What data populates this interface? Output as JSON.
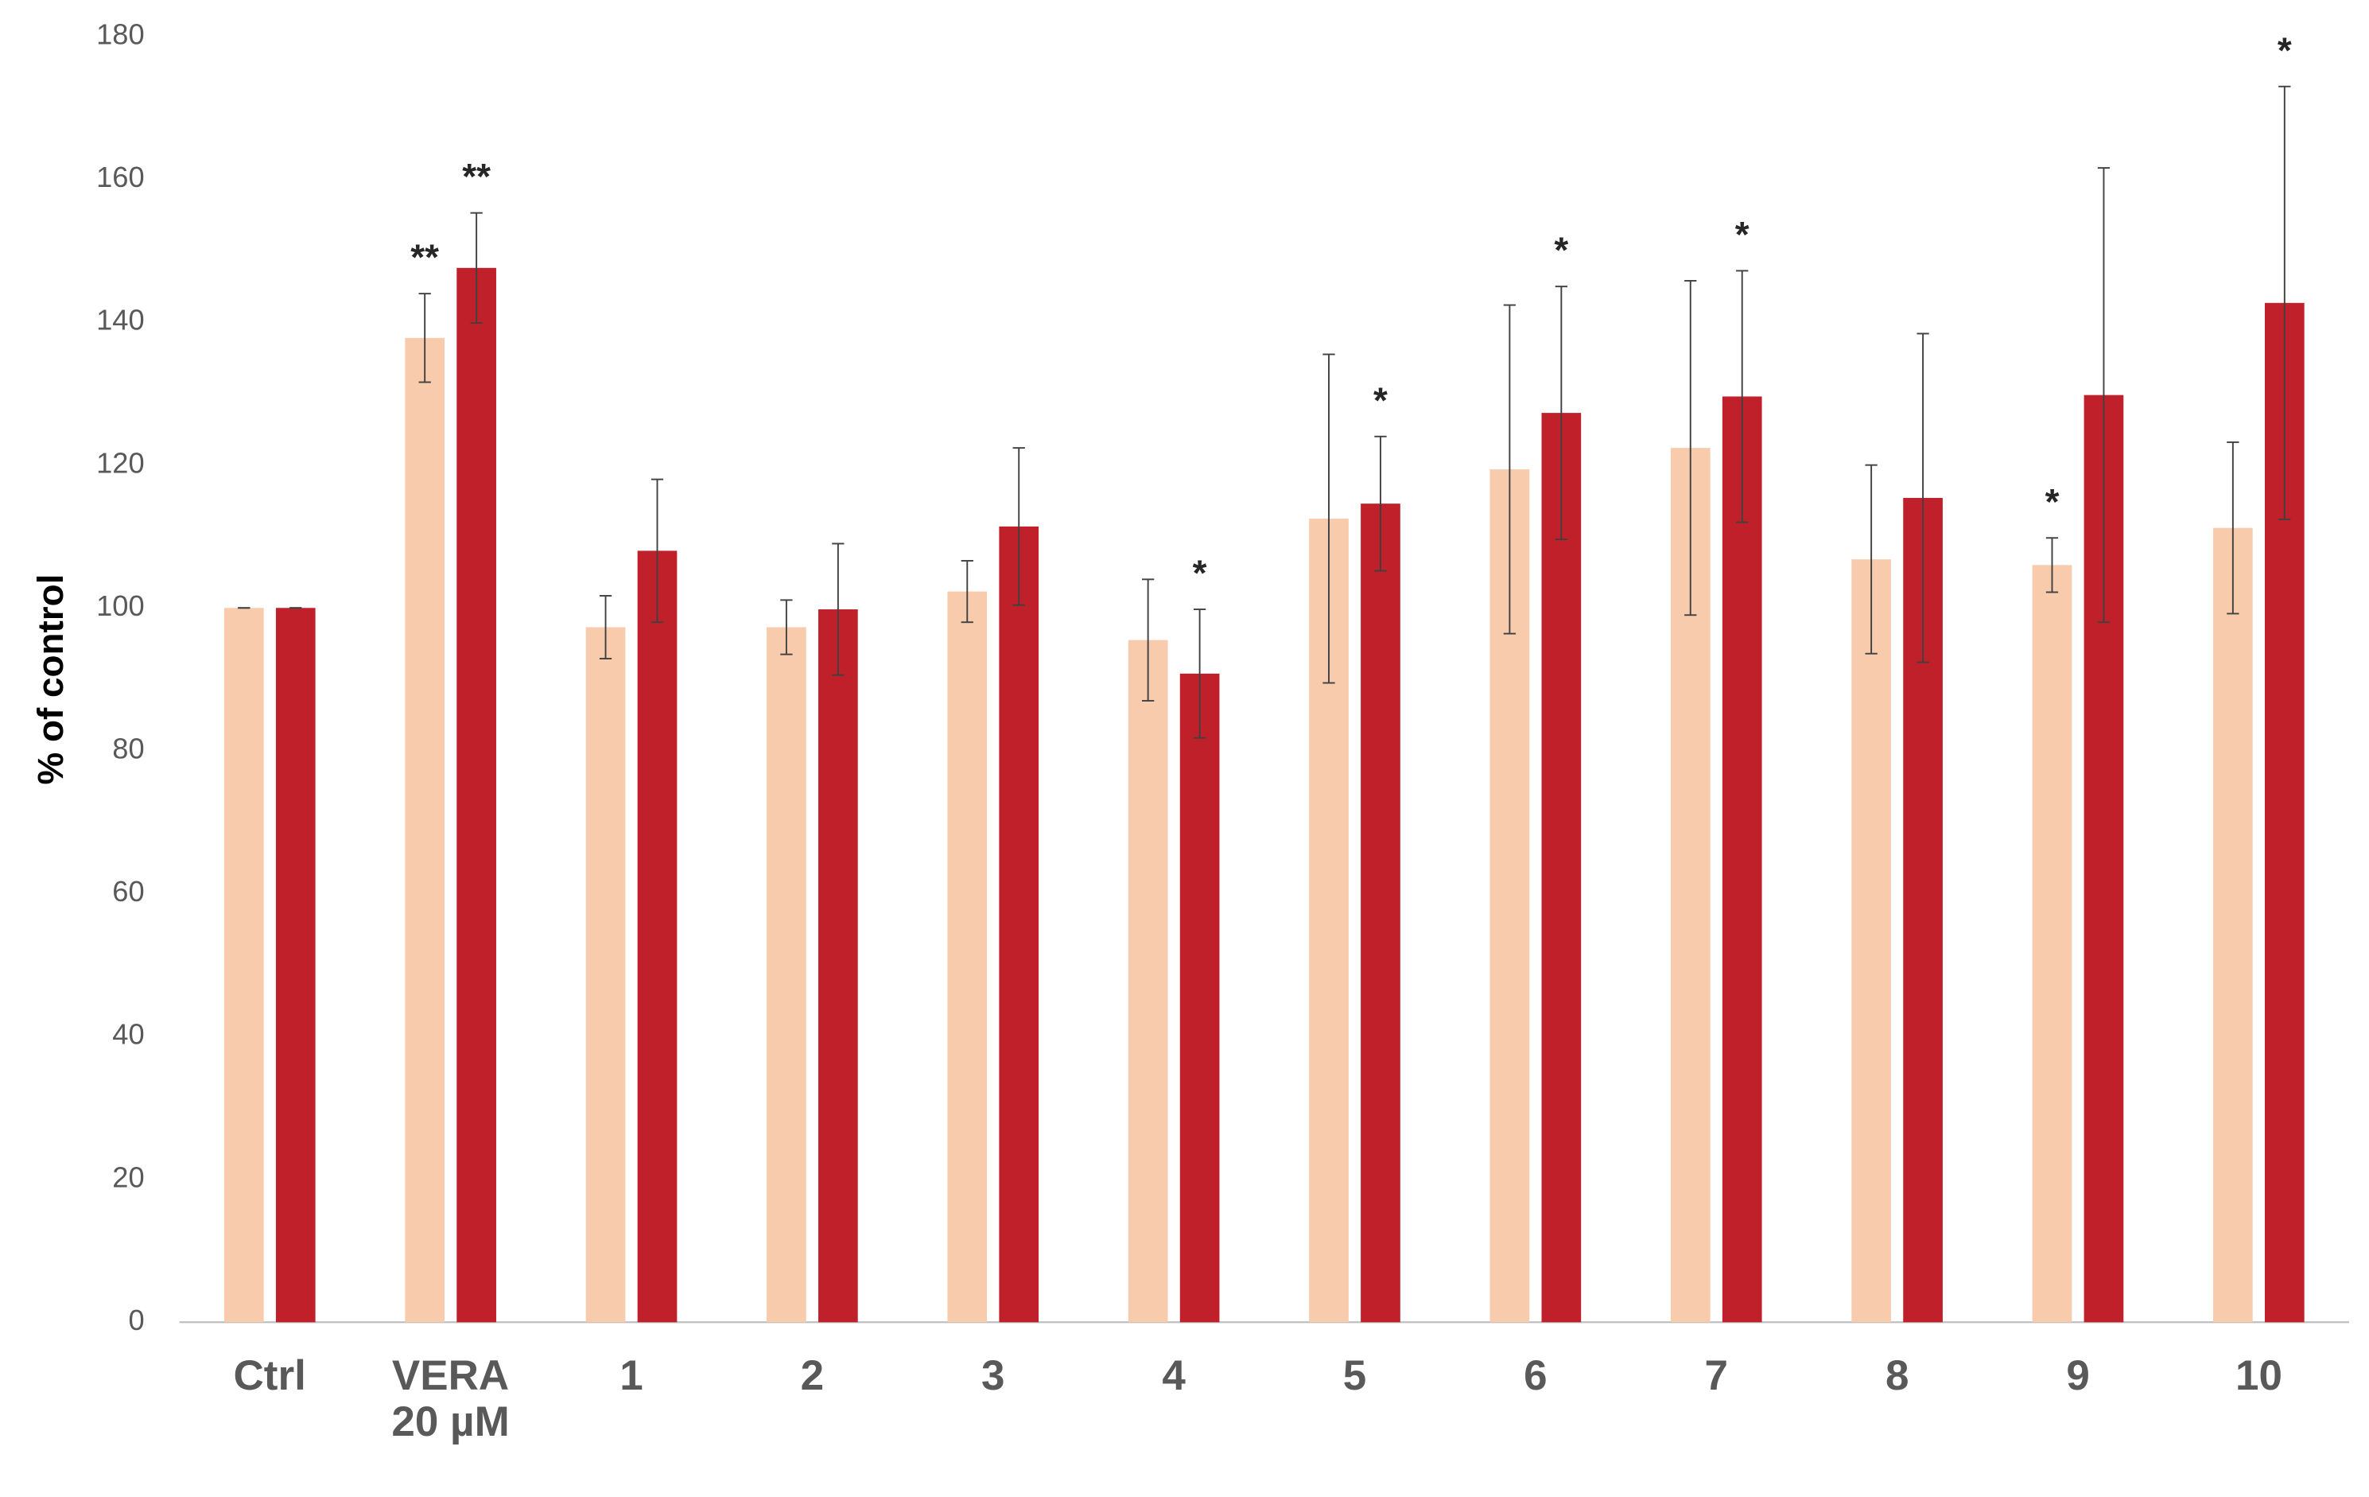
{
  "chart_data": {
    "type": "bar",
    "y_label": "% of control",
    "categories": [
      "Ctrl",
      "VERA 20 µM",
      "1",
      "2",
      "3",
      "4",
      "5",
      "6",
      "7",
      "8",
      "9",
      "10"
    ],
    "series": [
      {
        "color": "#f8cbad",
        "values": [
          100,
          137.8,
          97.3,
          97.3,
          102.3,
          95.5,
          112.5,
          119.4,
          122.4,
          106.8,
          106,
          111.2
        ],
        "errors": [
          0,
          6.2,
          4.4,
          3.8,
          4.3,
          8.5,
          23,
          23,
          23.4,
          13.2,
          3.8,
          12
        ],
        "annotations": [
          null,
          "**",
          null,
          null,
          null,
          null,
          null,
          null,
          null,
          null,
          "*",
          null
        ]
      },
      {
        "color": "#c0202a",
        "values": [
          100,
          147.6,
          108,
          99.8,
          111.4,
          90.8,
          114.6,
          127.3,
          129.6,
          115.4,
          129.8,
          142.7
        ],
        "errors": [
          0,
          7.7,
          10,
          9.2,
          11,
          9,
          9.4,
          17.7,
          17.6,
          23,
          31.8,
          30.3
        ],
        "annotations": [
          null,
          "**",
          null,
          null,
          null,
          "*",
          "*",
          "*",
          "*",
          null,
          null,
          "*"
        ]
      }
    ],
    "ylim": [
      0,
      180
    ],
    "yticks": [
      0,
      20,
      40,
      60,
      80,
      100,
      120,
      140,
      160,
      180
    ],
    "grid": false
  }
}
